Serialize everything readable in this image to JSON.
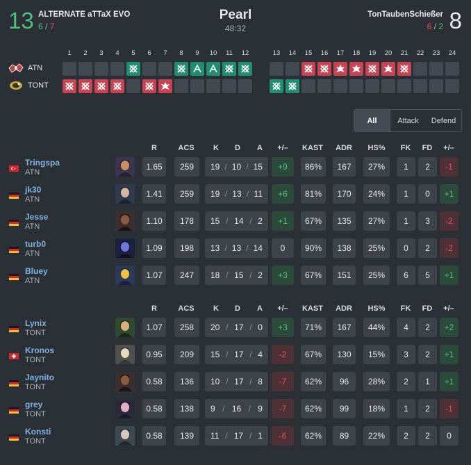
{
  "header": {
    "team1": {
      "name": "ALTERNATE aTTaX EVO",
      "score": "13",
      "atk": "6",
      "def": "7"
    },
    "team2": {
      "name": "TonTaubenSchießer",
      "score": "8",
      "atk": "6",
      "def": "2"
    },
    "map": "Pearl",
    "duration": "48:32"
  },
  "rounds": {
    "numbers": [
      "1",
      "2",
      "3",
      "4",
      "5",
      "6",
      "7",
      "8",
      "9",
      "10",
      "11",
      "12",
      "13",
      "14",
      "15",
      "16",
      "17",
      "18",
      "19",
      "20",
      "21",
      "22",
      "23",
      "24"
    ],
    "teams": [
      {
        "label": "ATN",
        "icon": "atn-team-logo",
        "cells": [
          "",
          "",
          "",
          "",
          "elim",
          "",
          "",
          "elim",
          "defuse",
          "defuse",
          "elim",
          "elim",
          "",
          "",
          "elim",
          "elim",
          "boom",
          "boom",
          "elim",
          "boom",
          "elim",
          "",
          "",
          ""
        ],
        "winner": [
          "",
          "",
          "",
          "",
          "atn",
          "",
          "",
          "atn",
          "atn",
          "atn",
          "atn",
          "atn",
          "",
          "",
          "tont",
          "tont",
          "tont",
          "tont",
          "tont",
          "tont",
          "tont",
          "",
          "",
          ""
        ]
      },
      {
        "label": "TONT",
        "icon": "tont-team-logo",
        "cells": [
          "elim",
          "elim",
          "elim",
          "elim",
          "",
          "elim",
          "boom",
          "",
          "",
          "",
          "",
          "",
          "elim",
          "elim",
          "",
          "",
          "",
          "",
          "",
          "",
          "",
          "",
          "",
          ""
        ],
        "winner": [
          "tont",
          "tont",
          "tont",
          "tont",
          "",
          "tont",
          "tont",
          "",
          "",
          "",
          "",
          "",
          "atn",
          "atn",
          "",
          "",
          "",
          "",
          "",
          "",
          "",
          "",
          "",
          ""
        ]
      }
    ]
  },
  "tabs": [
    {
      "label": "All",
      "active": true
    },
    {
      "label": "Attack",
      "active": false
    },
    {
      "label": "Defend",
      "active": false
    }
  ],
  "columns": [
    "R",
    "ACS",
    "K",
    "D",
    "A",
    "+/–",
    "KAST",
    "ADR",
    "HS%",
    "FK",
    "FD",
    "+/–"
  ],
  "teams": [
    {
      "players": [
        {
          "name": "Tringspa",
          "team": "ATN",
          "flag": "turkey-flag",
          "agent": "agent-portrait",
          "r": "1.65",
          "acs": "259",
          "k": "19",
          "d": "10",
          "a": "15",
          "pm": "+9",
          "kast": "86%",
          "adr": "167",
          "hs": "27%",
          "fk": "1",
          "fd": "2",
          "fpm": "-1"
        },
        {
          "name": "jk30",
          "team": "ATN",
          "flag": "germany-flag",
          "agent": "agent-portrait",
          "r": "1.41",
          "acs": "259",
          "k": "19",
          "d": "13",
          "a": "11",
          "pm": "+6",
          "kast": "81%",
          "adr": "170",
          "hs": "24%",
          "fk": "1",
          "fd": "0",
          "fpm": "+1"
        },
        {
          "name": "Jesse",
          "team": "ATN",
          "flag": "germany-flag",
          "agent": "agent-portrait",
          "r": "1.10",
          "acs": "178",
          "k": "15",
          "d": "14",
          "a": "2",
          "pm": "+1",
          "kast": "67%",
          "adr": "135",
          "hs": "27%",
          "fk": "1",
          "fd": "3",
          "fpm": "-2"
        },
        {
          "name": "turb0",
          "team": "ATN",
          "flag": "germany-flag",
          "agent": "agent-portrait",
          "r": "1.09",
          "acs": "198",
          "k": "13",
          "d": "13",
          "a": "14",
          "pm": "0",
          "kast": "90%",
          "adr": "138",
          "hs": "25%",
          "fk": "0",
          "fd": "2",
          "fpm": "-2"
        },
        {
          "name": "Bluey",
          "team": "ATN",
          "flag": "germany-flag",
          "agent": "agent-portrait",
          "r": "1.07",
          "acs": "247",
          "k": "18",
          "d": "15",
          "a": "2",
          "pm": "+3",
          "kast": "67%",
          "adr": "151",
          "hs": "25%",
          "fk": "6",
          "fd": "5",
          "fpm": "+1"
        }
      ]
    },
    {
      "players": [
        {
          "name": "Lynix",
          "team": "TONT",
          "flag": "germany-flag",
          "agent": "agent-portrait",
          "r": "1.07",
          "acs": "258",
          "k": "20",
          "d": "17",
          "a": "0",
          "pm": "+3",
          "kast": "71%",
          "adr": "167",
          "hs": "44%",
          "fk": "4",
          "fd": "2",
          "fpm": "+2"
        },
        {
          "name": "Kronos",
          "team": "TONT",
          "flag": "switzerland-flag",
          "agent": "agent-portrait",
          "r": "0.95",
          "acs": "209",
          "k": "15",
          "d": "17",
          "a": "4",
          "pm": "-2",
          "kast": "67%",
          "adr": "130",
          "hs": "15%",
          "fk": "3",
          "fd": "2",
          "fpm": "+1"
        },
        {
          "name": "Jaynito",
          "team": "TONT",
          "flag": "germany-flag",
          "agent": "agent-portrait",
          "r": "0.58",
          "acs": "136",
          "k": "10",
          "d": "17",
          "a": "8",
          "pm": "-7",
          "kast": "62%",
          "adr": "96",
          "hs": "28%",
          "fk": "2",
          "fd": "1",
          "fpm": "+1"
        },
        {
          "name": "grey",
          "team": "TONT",
          "flag": "germany-flag",
          "agent": "agent-portrait",
          "r": "0.58",
          "acs": "138",
          "k": "9",
          "d": "16",
          "a": "9",
          "pm": "-7",
          "kast": "62%",
          "adr": "99",
          "hs": "18%",
          "fk": "1",
          "fd": "2",
          "fpm": "-1"
        },
        {
          "name": "Konsti",
          "team": "TONT",
          "flag": "germany-flag",
          "agent": "agent-portrait",
          "r": "0.58",
          "acs": "139",
          "k": "11",
          "d": "17",
          "a": "1",
          "pm": "-6",
          "kast": "62%",
          "adr": "89",
          "hs": "22%",
          "fk": "2",
          "fd": "2",
          "fpm": "0"
        }
      ]
    }
  ],
  "kda_separator": "/"
}
